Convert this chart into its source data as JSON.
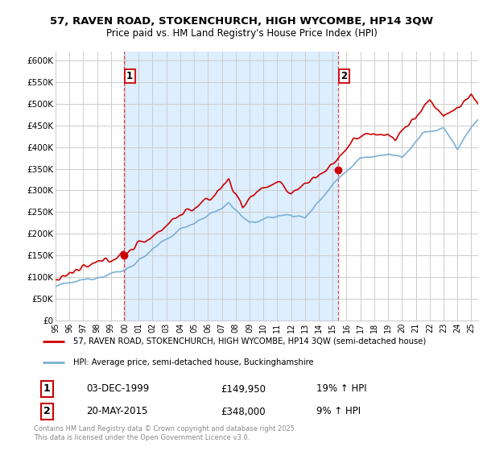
{
  "title_line1": "57, RAVEN ROAD, STOKENCHURCH, HIGH WYCOMBE, HP14 3QW",
  "title_line2": "Price paid vs. HM Land Registry's House Price Index (HPI)",
  "legend_label1": "57, RAVEN ROAD, STOKENCHURCH, HIGH WYCOMBE, HP14 3QW (semi-detached house)",
  "legend_label2": "HPI: Average price, semi-detached house, Buckinghamshire",
  "sale1_date": "03-DEC-1999",
  "sale1_price": "£149,950",
  "sale1_hpi": "19% ↑ HPI",
  "sale2_date": "20-MAY-2015",
  "sale2_price": "£348,000",
  "sale2_hpi": "9% ↑ HPI",
  "copyright": "Contains HM Land Registry data © Crown copyright and database right 2025.\nThis data is licensed under the Open Government Licence v3.0.",
  "sale1_year": 1999.92,
  "sale1_value": 149950,
  "sale2_year": 2015.38,
  "sale2_value": 348000,
  "ylim": [
    0,
    620000
  ],
  "yticks": [
    0,
    50000,
    100000,
    150000,
    200000,
    250000,
    300000,
    350000,
    400000,
    450000,
    500000,
    550000,
    600000
  ],
  "xlim_left": 1995.0,
  "xlim_right": 2025.5,
  "background_color": "#ffffff",
  "plot_bg_color": "#ffffff",
  "shade_color": "#ddeeff",
  "red_line_color": "#cc0000",
  "blue_line_color": "#7ab0d4",
  "dashed_line_color": "#cc0000",
  "grid_color": "#cccccc",
  "label_box_color": "#cc0000"
}
